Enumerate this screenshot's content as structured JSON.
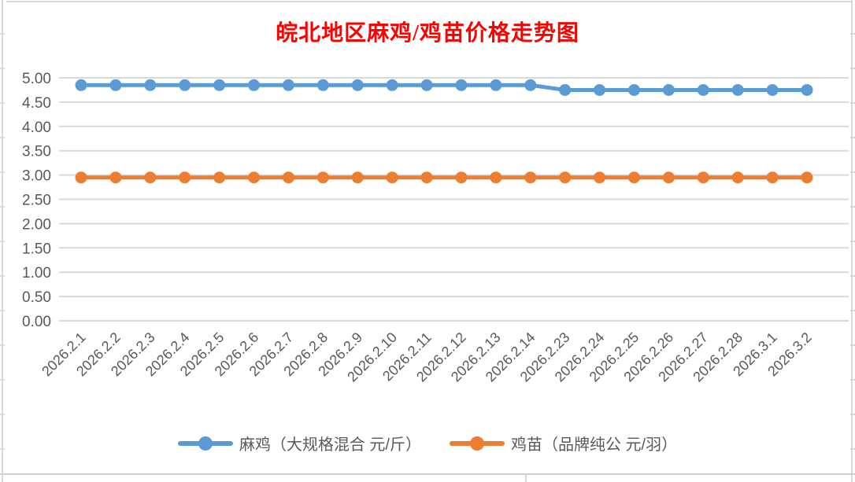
{
  "title": {
    "text": "皖北地区麻鸡/鸡苗价格走势图",
    "color": "#FF0000"
  },
  "chart_data": {
    "type": "line",
    "title": "皖北地区麻鸡/鸡苗价格走势图",
    "categories": [
      "2026.2.1",
      "2026.2.2",
      "2026.2.3",
      "2026.2.4",
      "2026.2.5",
      "2026.2.6",
      "2026.2.7",
      "2026.2.8",
      "2026.2.9",
      "2026.2.10",
      "2026.2.11",
      "2026.2.12",
      "2026.2.13",
      "2026.2.14",
      "2026.2.23",
      "2026.2.24",
      "2026.2.25",
      "2026.2.26",
      "2026.2.27",
      "2026.2.28",
      "2026.3.1",
      "2026.3.2"
    ],
    "series": [
      {
        "name": "麻鸡（大规格混合 元/斤）",
        "color": "#5B9BD5",
        "values": [
          4.85,
          4.85,
          4.85,
          4.85,
          4.85,
          4.85,
          4.85,
          4.85,
          4.85,
          4.85,
          4.85,
          4.85,
          4.85,
          4.85,
          4.75,
          4.75,
          4.75,
          4.75,
          4.75,
          4.75,
          4.75,
          4.75
        ]
      },
      {
        "name": "鸡苗（品牌纯公 元/羽）",
        "color": "#ED7D31",
        "values": [
          2.95,
          2.95,
          2.95,
          2.95,
          2.95,
          2.95,
          2.95,
          2.95,
          2.95,
          2.95,
          2.95,
          2.95,
          2.95,
          2.95,
          2.95,
          2.95,
          2.95,
          2.95,
          2.95,
          2.95,
          2.95,
          2.95
        ]
      }
    ],
    "xlabel": "",
    "ylabel": "",
    "ylim": [
      0,
      5
    ],
    "yticks": [
      "5.00",
      "4.50",
      "4.00",
      "3.50",
      "3.00",
      "2.50",
      "2.00",
      "1.50",
      "1.00",
      "0.50",
      "0.00"
    ],
    "grid": true,
    "legend_position": "bottom",
    "axis_text_color": "#595959",
    "gridline_color": "#D9D9D9"
  }
}
